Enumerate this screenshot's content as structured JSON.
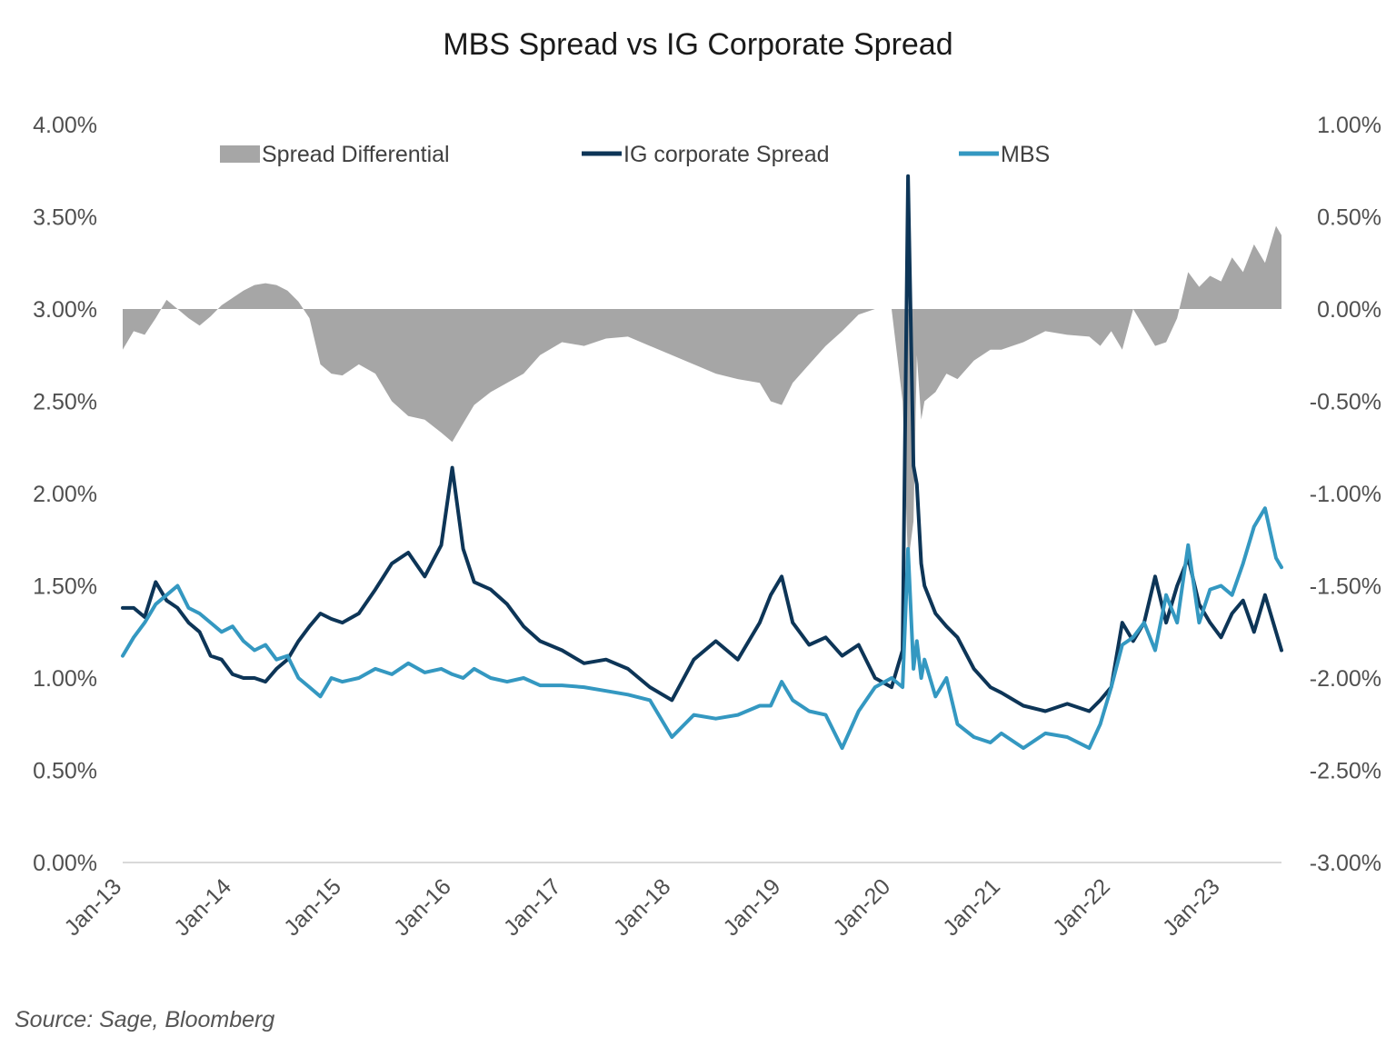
{
  "chart_data": {
    "type": "line",
    "title": "MBS Spread vs IG Corporate Spread",
    "source": "Source: Sage, Bloomberg",
    "y_left": {
      "ticks": [
        "0.00%",
        "0.50%",
        "1.00%",
        "1.50%",
        "2.00%",
        "2.50%",
        "3.00%",
        "3.50%",
        "4.00%"
      ],
      "ylim": [
        0,
        4.0
      ],
      "step": 0.5
    },
    "y_right": {
      "ticks": [
        "-3.00%",
        "-2.50%",
        "-2.00%",
        "-1.50%",
        "-1.00%",
        "-0.50%",
        "0.00%",
        "0.50%",
        "1.00%"
      ],
      "ylim": [
        -3.0,
        1.0
      ],
      "step": 0.5
    },
    "x": {
      "ticks": [
        "Jan-13",
        "Jan-14",
        "Jan-15",
        "Jan-16",
        "Jan-17",
        "Jan-18",
        "Jan-19",
        "Jan-20",
        "Jan-21",
        "Jan-22",
        "Jan-23"
      ],
      "tick_values": [
        2013.0,
        2014.0,
        2015.0,
        2016.0,
        2017.0,
        2018.0,
        2019.0,
        2020.0,
        2021.0,
        2022.0,
        2023.0
      ],
      "xlim": [
        2013.0,
        2023.55
      ]
    },
    "legend": [
      "Spread Differential",
      "IG corporate Spread",
      "MBS"
    ],
    "legend_position": "top",
    "grid": false,
    "colors": {
      "spread_differential": "#a6a6a6",
      "ig": "#0d3557",
      "mbs": "#3498c1",
      "axis": "#d9d9d9"
    },
    "series": [
      {
        "name": "Spread Differential",
        "axis": "right",
        "kind": "area",
        "x": [
          2013.0,
          2013.1,
          2013.2,
          2013.3,
          2013.4,
          2013.5,
          2013.6,
          2013.7,
          2013.8,
          2013.9,
          2014.0,
          2014.1,
          2014.2,
          2014.3,
          2014.4,
          2014.5,
          2014.6,
          2014.7,
          2014.8,
          2014.9,
          2015.0,
          2015.15,
          2015.3,
          2015.45,
          2015.6,
          2015.75,
          2015.9,
          2016.0,
          2016.1,
          2016.2,
          2016.35,
          2016.5,
          2016.65,
          2016.8,
          2017.0,
          2017.2,
          2017.4,
          2017.6,
          2017.8,
          2018.0,
          2018.2,
          2018.4,
          2018.6,
          2018.8,
          2018.9,
          2019.0,
          2019.1,
          2019.25,
          2019.4,
          2019.55,
          2019.7,
          2019.85,
          2020.0,
          2020.1,
          2020.15,
          2020.2,
          2020.23,
          2020.27,
          2020.3,
          2020.4,
          2020.5,
          2020.6,
          2020.75,
          2020.9,
          2021.0,
          2021.2,
          2021.4,
          2021.6,
          2021.8,
          2021.9,
          2022.0,
          2022.1,
          2022.2,
          2022.3,
          2022.4,
          2022.5,
          2022.6,
          2022.7,
          2022.8,
          2022.9,
          2023.0,
          2023.1,
          2023.2,
          2023.3,
          2023.4,
          2023.5,
          2023.55
        ],
        "values": [
          -0.22,
          -0.12,
          -0.14,
          -0.05,
          0.05,
          0.0,
          -0.05,
          -0.09,
          -0.04,
          0.02,
          0.06,
          0.1,
          0.13,
          0.14,
          0.13,
          0.1,
          0.04,
          -0.05,
          -0.3,
          -0.35,
          -0.36,
          -0.3,
          -0.35,
          -0.5,
          -0.58,
          -0.6,
          -0.67,
          -0.72,
          -0.62,
          -0.52,
          -0.45,
          -0.4,
          -0.35,
          -0.25,
          -0.18,
          -0.2,
          -0.16,
          -0.15,
          -0.2,
          -0.25,
          -0.3,
          -0.35,
          -0.38,
          -0.4,
          -0.5,
          -0.52,
          -0.4,
          -0.3,
          -0.2,
          -0.12,
          -0.03,
          0.0,
          0.0,
          -0.5,
          -1.38,
          -1.15,
          -0.25,
          -0.6,
          -0.5,
          -0.45,
          -0.35,
          -0.38,
          -0.28,
          -0.22,
          -0.22,
          -0.18,
          -0.12,
          -0.14,
          -0.15,
          -0.2,
          -0.12,
          -0.22,
          0.0,
          -0.1,
          -0.2,
          -0.18,
          -0.05,
          0.2,
          0.12,
          0.18,
          0.15,
          0.28,
          0.2,
          0.35,
          0.25,
          0.45,
          0.4
        ]
      },
      {
        "name": "IG corporate Spread",
        "axis": "left",
        "kind": "line",
        "x": [
          2013.0,
          2013.1,
          2013.2,
          2013.3,
          2013.4,
          2013.5,
          2013.6,
          2013.7,
          2013.8,
          2013.9,
          2014.0,
          2014.1,
          2014.2,
          2014.3,
          2014.4,
          2014.5,
          2014.6,
          2014.7,
          2014.8,
          2014.9,
          2015.0,
          2015.15,
          2015.3,
          2015.45,
          2015.6,
          2015.75,
          2015.9,
          2016.0,
          2016.1,
          2016.2,
          2016.35,
          2016.5,
          2016.65,
          2016.8,
          2017.0,
          2017.2,
          2017.4,
          2017.6,
          2017.8,
          2018.0,
          2018.2,
          2018.4,
          2018.6,
          2018.8,
          2018.9,
          2019.0,
          2019.1,
          2019.25,
          2019.4,
          2019.55,
          2019.7,
          2019.85,
          2020.0,
          2020.1,
          2020.15,
          2020.2,
          2020.23,
          2020.27,
          2020.3,
          2020.4,
          2020.5,
          2020.6,
          2020.75,
          2020.9,
          2021.0,
          2021.2,
          2021.4,
          2021.6,
          2021.8,
          2021.9,
          2022.0,
          2022.1,
          2022.2,
          2022.3,
          2022.4,
          2022.5,
          2022.6,
          2022.7,
          2022.8,
          2022.9,
          2023.0,
          2023.1,
          2023.2,
          2023.3,
          2023.4,
          2023.5,
          2023.55
        ],
        "values": [
          1.38,
          1.38,
          1.33,
          1.52,
          1.42,
          1.38,
          1.3,
          1.25,
          1.12,
          1.1,
          1.02,
          1.0,
          1.0,
          0.98,
          1.05,
          1.1,
          1.2,
          1.28,
          1.35,
          1.32,
          1.3,
          1.35,
          1.48,
          1.62,
          1.68,
          1.55,
          1.72,
          2.14,
          1.7,
          1.52,
          1.48,
          1.4,
          1.28,
          1.2,
          1.15,
          1.08,
          1.1,
          1.05,
          0.95,
          0.88,
          1.1,
          1.2,
          1.1,
          1.3,
          1.45,
          1.55,
          1.3,
          1.18,
          1.22,
          1.12,
          1.18,
          1.0,
          0.95,
          1.15,
          3.72,
          2.15,
          2.05,
          1.62,
          1.5,
          1.35,
          1.28,
          1.22,
          1.05,
          0.95,
          0.92,
          0.85,
          0.82,
          0.86,
          0.82,
          0.88,
          0.95,
          1.3,
          1.2,
          1.3,
          1.55,
          1.3,
          1.5,
          1.65,
          1.4,
          1.3,
          1.22,
          1.35,
          1.42,
          1.25,
          1.45,
          1.25,
          1.15
        ]
      },
      {
        "name": "MBS",
        "axis": "left",
        "kind": "line",
        "x": [
          2013.0,
          2013.1,
          2013.2,
          2013.3,
          2013.4,
          2013.5,
          2013.6,
          2013.7,
          2013.8,
          2013.9,
          2014.0,
          2014.1,
          2014.2,
          2014.3,
          2014.4,
          2014.5,
          2014.6,
          2014.7,
          2014.8,
          2014.9,
          2015.0,
          2015.15,
          2015.3,
          2015.45,
          2015.6,
          2015.75,
          2015.9,
          2016.0,
          2016.1,
          2016.2,
          2016.35,
          2016.5,
          2016.65,
          2016.8,
          2017.0,
          2017.2,
          2017.4,
          2017.6,
          2017.8,
          2018.0,
          2018.2,
          2018.4,
          2018.6,
          2018.8,
          2018.9,
          2019.0,
          2019.1,
          2019.25,
          2019.4,
          2019.55,
          2019.7,
          2019.85,
          2020.0,
          2020.1,
          2020.15,
          2020.2,
          2020.23,
          2020.27,
          2020.3,
          2020.4,
          2020.5,
          2020.6,
          2020.75,
          2020.9,
          2021.0,
          2021.2,
          2021.4,
          2021.6,
          2021.8,
          2021.9,
          2022.0,
          2022.1,
          2022.2,
          2022.3,
          2022.4,
          2022.5,
          2022.6,
          2022.7,
          2022.8,
          2022.9,
          2023.0,
          2023.1,
          2023.2,
          2023.3,
          2023.4,
          2023.5,
          2023.55
        ],
        "values": [
          1.12,
          1.22,
          1.3,
          1.4,
          1.45,
          1.5,
          1.38,
          1.35,
          1.3,
          1.25,
          1.28,
          1.2,
          1.15,
          1.18,
          1.1,
          1.12,
          1.0,
          0.95,
          0.9,
          1.0,
          0.98,
          1.0,
          1.05,
          1.02,
          1.08,
          1.03,
          1.05,
          1.02,
          1.0,
          1.05,
          1.0,
          0.98,
          1.0,
          0.96,
          0.96,
          0.95,
          0.93,
          0.91,
          0.88,
          0.68,
          0.8,
          0.78,
          0.8,
          0.85,
          0.85,
          0.98,
          0.88,
          0.82,
          0.8,
          0.62,
          0.82,
          0.95,
          1.0,
          0.95,
          1.7,
          1.05,
          1.2,
          1.0,
          1.1,
          0.9,
          1.0,
          0.75,
          0.68,
          0.65,
          0.7,
          0.62,
          0.7,
          0.68,
          0.62,
          0.75,
          0.95,
          1.18,
          1.22,
          1.3,
          1.15,
          1.45,
          1.3,
          1.72,
          1.3,
          1.48,
          1.5,
          1.45,
          1.62,
          1.82,
          1.92,
          1.65,
          1.6
        ]
      }
    ]
  }
}
